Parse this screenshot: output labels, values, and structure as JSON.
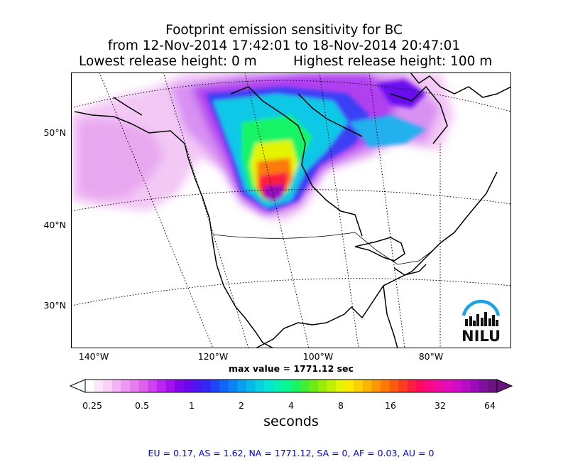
{
  "title": {
    "line1": "Footprint emission sensitivity for BC",
    "line2": "from 12-Nov-2014 17:42:01 to 18-Nov-2014 20:47:01",
    "line3_left": "Lowest release height: 0 m",
    "line3_right": "Highest release height: 100 m"
  },
  "map": {
    "lat_labels": [
      "50°N",
      "40°N",
      "30°N"
    ],
    "lon_labels": [
      "140°W",
      "120°W",
      "100°W",
      "80°W"
    ],
    "logo_text": "NILU",
    "colors": {
      "logo_blue": "#1aa3e0",
      "logo_dark": "#111111"
    }
  },
  "max_value_text": "max value = 1771.12 sec",
  "colorbar": {
    "tick_labels": [
      "0.25",
      "0.5",
      "1",
      "2",
      "4",
      "8",
      "16",
      "32",
      "64"
    ],
    "label": "seconds",
    "colors": [
      "#ffffff",
      "#fce6fc",
      "#f8d0f8",
      "#f3b4f5",
      "#ee98f2",
      "#e77cef",
      "#df60ee",
      "#cf40ee",
      "#bd24f0",
      "#a410ee",
      "#8606ec",
      "#6a08ee",
      "#4e14f2",
      "#3426f5",
      "#1e46f7",
      "#0f66f6",
      "#0a84f3",
      "#08a0ee",
      "#06bae8",
      "#06d2e2",
      "#06e4d2",
      "#06f0b4",
      "#0af690",
      "#18f466",
      "#40ee34",
      "#6cec14",
      "#98ee08",
      "#c0f004",
      "#e4f404",
      "#fcea02",
      "#fcd002",
      "#fcb404",
      "#fc9806",
      "#fc7a08",
      "#fc5a10",
      "#fc3c1e",
      "#fc1e40",
      "#fc0a62",
      "#f80a86",
      "#f00ca4",
      "#e20cba",
      "#d00cc4",
      "#b80cc4",
      "#9c0cbc",
      "#82109e",
      "#6a1480"
    ],
    "under_color": "#ffffff",
    "over_color": "#6a1480"
  },
  "footer": "EU = 0.17,  AS = 1.62,  NA = 1771.12,  SA = 0,  AF = 0.03,  AU = 0"
}
